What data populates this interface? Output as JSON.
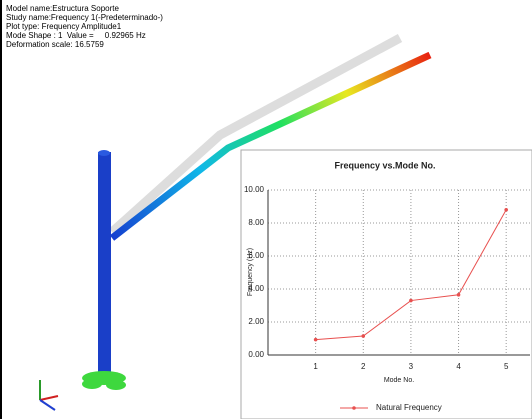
{
  "info": {
    "lines": [
      "Model name:Estructura Soporte",
      "Study name:Frequency 1(-Predeterminado-)",
      "Plot type: Frequency Amplitude1",
      "Mode Shape : 1  Value =     0.92965 Hz",
      "Deformation scale: 16.5759"
    ]
  },
  "chart_data": {
    "type": "line",
    "title": "Frequency vs.Mode No.",
    "x_label": "Mode No.",
    "y_label": "Frequency (Hz)",
    "x": [
      1,
      2,
      3,
      4,
      5
    ],
    "series": [
      {
        "name": "Natural Frequency",
        "color": "#e8504f",
        "values": [
          0.93,
          1.15,
          3.3,
          3.65,
          8.8
        ]
      }
    ],
    "xlim": [
      0,
      5.5
    ],
    "xticks": [
      1,
      2,
      3,
      4,
      5
    ],
    "ylim": [
      0,
      10
    ],
    "yticks": [
      {
        "value": 0,
        "label": "0.00"
      },
      {
        "value": 2,
        "label": "2.00"
      },
      {
        "value": 4,
        "label": "4.00"
      },
      {
        "value": 6,
        "label": "6.00"
      },
      {
        "value": 8,
        "label": "8.00"
      },
      {
        "value": 10,
        "label": "10.00"
      }
    ],
    "grid": true
  }
}
